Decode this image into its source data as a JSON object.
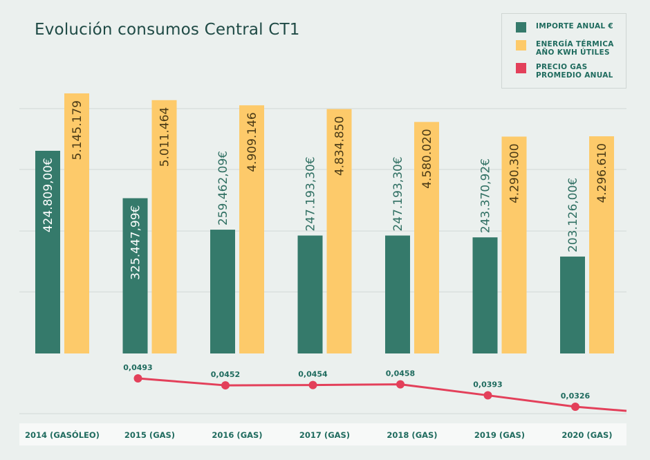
{
  "title": "Evolución consumos Central CT1",
  "legend": [
    {
      "label": "IMPORTE ANUAL €",
      "color": "#357a6b"
    },
    {
      "label": "ENERGÍA TÉRMICA\nAÑO KWH ÚTILES",
      "color": "#fdca6a"
    },
    {
      "label": "PRECIO GAS\nPROMEDIO ANUAL",
      "color": "#e3405a"
    }
  ],
  "chart_data": {
    "type": "bar",
    "categories": [
      "2014 (GASÓLEO)",
      "2015 (GAS)",
      "2016 (GAS)",
      "2017 (GAS)",
      "2018 (GAS)",
      "2019 (GAS)",
      "2020 (GAS)"
    ],
    "series": [
      {
        "name": "IMPORTE ANUAL €",
        "color": "#357a6b",
        "values": [
          424809.0,
          325447.99,
          259462.09,
          247193.3,
          247193.3,
          243370.92,
          203126.0
        ],
        "labels": [
          "424.809,00€",
          "325.447,99€",
          "259.462,09€",
          "247.193,30€",
          "247.193,30€",
          "243.370,92€",
          "203.126,00€"
        ]
      },
      {
        "name": "ENERGÍA TÉRMICA AÑO KWH ÚTILES",
        "color": "#fdca6a",
        "values": [
          5145179,
          5011464,
          4909146,
          4834850,
          4580020,
          4290300,
          4296610
        ],
        "labels": [
          "5.145.179",
          "5.011.464",
          "4.909.146",
          "4.834.850",
          "4.580.020",
          "4.290.300",
          "4.296.610"
        ]
      },
      {
        "name": "PRECIO GAS PROMEDIO ANUAL",
        "type": "line",
        "color": "#e3405a",
        "values": [
          null,
          0.0493,
          0.0452,
          0.0454,
          0.0458,
          0.0393,
          0.0326
        ],
        "labels": [
          "",
          "0,0493",
          "0,0452",
          "0,0454",
          "0,0458",
          "0,0393",
          "0,0326"
        ]
      }
    ],
    "grid": true,
    "legend_position": "top-right"
  }
}
